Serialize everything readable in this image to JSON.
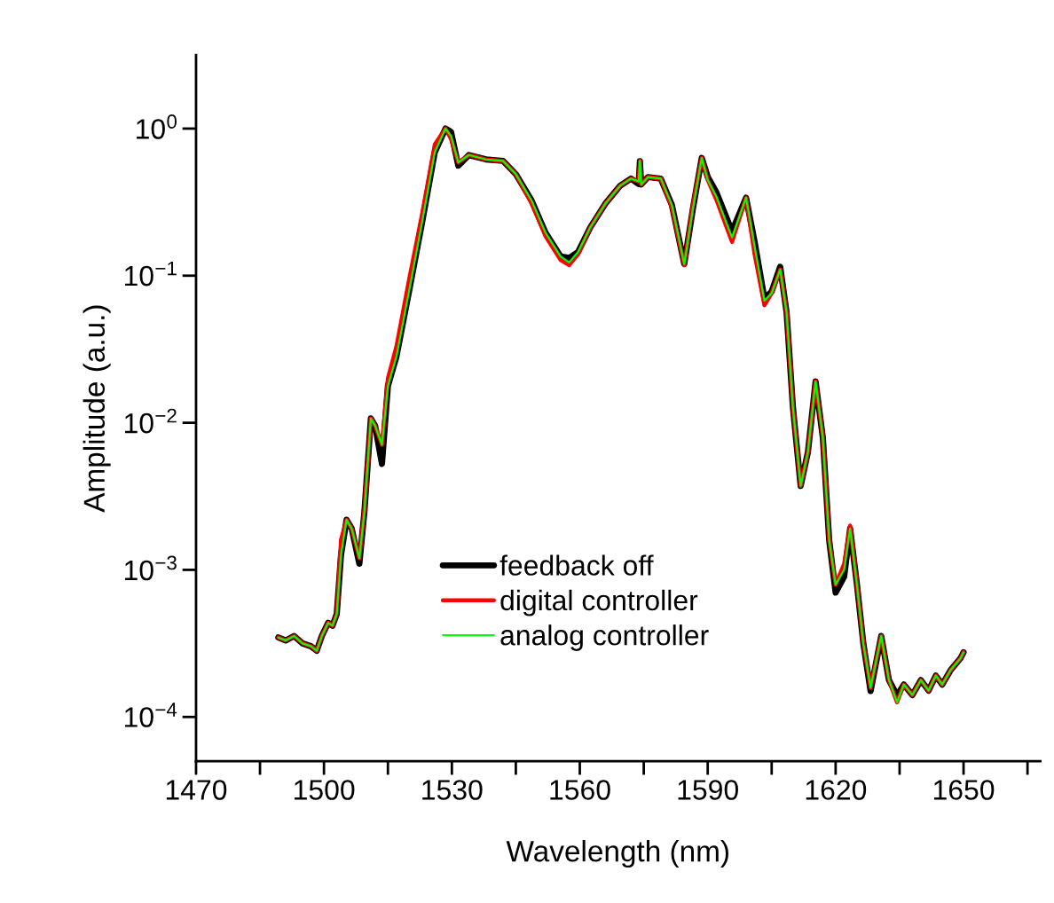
{
  "chart_data": {
    "type": "line",
    "xlabel": "Wavelength (nm)",
    "ylabel": "Amplitude (a.u.)",
    "log": "y",
    "legend": "bottom",
    "grid": false,
    "xlim": [
      1470,
      1668
    ],
    "ylim": [
      5e-05,
      3.16
    ],
    "xticks": [
      1470,
      {
        "value": 1485,
        "label": null
      },
      1500,
      {
        "value": 1515,
        "label": null
      },
      1530,
      {
        "value": 1545,
        "label": null
      },
      1560,
      {
        "value": 1575,
        "label": null
      },
      1590,
      {
        "value": 1605,
        "label": null
      },
      1620,
      {
        "value": 1635,
        "label": null
      },
      1650,
      {
        "value": 1665,
        "label": null
      }
    ],
    "yticks": [
      {
        "value": 0.0001,
        "label": "10$^{−4}$"
      },
      {
        "value": 0.001,
        "label": "10$^{−3}$"
      },
      {
        "value": 0.01,
        "label": "10$^{−2}$"
      },
      {
        "value": 0.1,
        "label": "10$^{−1}$"
      },
      {
        "value": 1,
        "label": "10$^{0}$"
      }
    ],
    "x": [
      1489.3,
      1491,
      1493,
      1495,
      1497,
      1498.3,
      1499.5,
      1501,
      1502,
      1503,
      1504,
      1505.3,
      1506.5,
      1508.3,
      1509.5,
      1511,
      1512,
      1513.6,
      1515,
      1517,
      1520,
      1523,
      1526,
      1528.5,
      1529.8,
      1531.5,
      1534,
      1538,
      1542,
      1545,
      1548.7,
      1552,
      1555.5,
      1557.5,
      1559.6,
      1562.5,
      1566,
      1569.4,
      1572,
      1573.8,
      1574.1,
      1574.4,
      1576,
      1579,
      1581.6,
      1584.5,
      1586.5,
      1588.6,
      1590,
      1592,
      1595.7,
      1599,
      1601,
      1603.3,
      1605,
      1607,
      1608.5,
      1610,
      1611.8,
      1613.5,
      1615.3,
      1617,
      1618.5,
      1620,
      1622,
      1623.4,
      1625,
      1626.5,
      1628.2,
      1630.7,
      1632.5,
      1634.4,
      1636,
      1638,
      1640,
      1641.8,
      1643.5,
      1645,
      1647,
      1649.3,
      1650
    ],
    "series": [
      {
        "name": "feedback off",
        "color": "#000000",
        "values": [
          0.000347,
          0.000331,
          0.000355,
          0.000316,
          0.000302,
          0.000282,
          0.000355,
          0.000437,
          0.000417,
          0.000501,
          0.00126,
          0.00219,
          0.00191,
          0.0011,
          0.00251,
          0.0107,
          0.00955,
          0.00525,
          0.0178,
          0.0282,
          0.0794,
          0.229,
          0.692,
          1.0,
          0.95,
          0.56,
          0.661,
          0.617,
          0.603,
          0.49,
          0.324,
          0.195,
          0.135,
          0.132,
          0.145,
          0.214,
          0.309,
          0.407,
          0.457,
          0.42,
          0.6,
          0.417,
          0.468,
          0.457,
          0.302,
          0.12,
          0.282,
          0.631,
          0.47,
          0.37,
          0.2,
          0.339,
          0.17,
          0.07,
          0.078,
          0.115,
          0.0562,
          0.0126,
          0.00372,
          0.00631,
          0.0191,
          0.00794,
          0.00158,
          0.0007,
          0.0009,
          0.00191,
          0.000794,
          0.000316,
          0.00015,
          0.000355,
          0.000178,
          0.00014,
          0.000166,
          0.000141,
          0.000178,
          0.000151,
          0.000191,
          0.000166,
          0.000209,
          0.000251,
          0.000275
        ]
      },
      {
        "name": "digital controller",
        "color": "#ff0000",
        "values": [
          0.000347,
          0.000331,
          0.000355,
          0.000316,
          0.000302,
          0.000282,
          0.000355,
          0.000437,
          0.000417,
          0.000501,
          0.0016,
          0.00219,
          0.00191,
          0.0012,
          0.0026,
          0.0107,
          0.00955,
          0.00708,
          0.02,
          0.033,
          0.095,
          0.26,
          0.78,
          1.0,
          0.85,
          0.589,
          0.661,
          0.617,
          0.603,
          0.49,
          0.31,
          0.185,
          0.128,
          0.118,
          0.14,
          0.214,
          0.309,
          0.407,
          0.457,
          0.437,
          0.603,
          0.417,
          0.468,
          0.457,
          0.29,
          0.118,
          0.3,
          0.631,
          0.447,
          0.33,
          0.17,
          0.339,
          0.14,
          0.063,
          0.0759,
          0.11,
          0.0562,
          0.0126,
          0.00372,
          0.00631,
          0.0191,
          0.00794,
          0.00158,
          0.000794,
          0.0011,
          0.002,
          0.000794,
          0.000316,
          0.000158,
          0.000355,
          0.000178,
          0.000126,
          0.000166,
          0.000141,
          0.000178,
          0.000151,
          0.000191,
          0.000166,
          0.000209,
          0.000251,
          0.000275
        ]
      },
      {
        "name": "analog controller",
        "color": "#00ff00",
        "values": [
          0.000347,
          0.000331,
          0.000355,
          0.000316,
          0.000302,
          0.000282,
          0.000355,
          0.000437,
          0.000417,
          0.000501,
          0.00126,
          0.00219,
          0.00191,
          0.0012,
          0.00251,
          0.0107,
          0.00955,
          0.00708,
          0.0178,
          0.0282,
          0.0794,
          0.229,
          0.692,
          1.0,
          0.891,
          0.589,
          0.661,
          0.617,
          0.603,
          0.49,
          0.324,
          0.195,
          0.135,
          0.123,
          0.145,
          0.214,
          0.309,
          0.407,
          0.457,
          0.437,
          0.603,
          0.417,
          0.468,
          0.457,
          0.302,
          0.12,
          0.282,
          0.631,
          0.447,
          0.347,
          0.182,
          0.339,
          0.158,
          0.0676,
          0.0759,
          0.11,
          0.0562,
          0.0126,
          0.00372,
          0.00631,
          0.0191,
          0.00794,
          0.00158,
          0.000794,
          0.001,
          0.00191,
          0.000794,
          0.000316,
          0.000158,
          0.000355,
          0.000178,
          0.000126,
          0.000166,
          0.000141,
          0.000178,
          0.000151,
          0.000191,
          0.000166,
          0.000209,
          0.000251,
          0.000275
        ]
      }
    ]
  }
}
